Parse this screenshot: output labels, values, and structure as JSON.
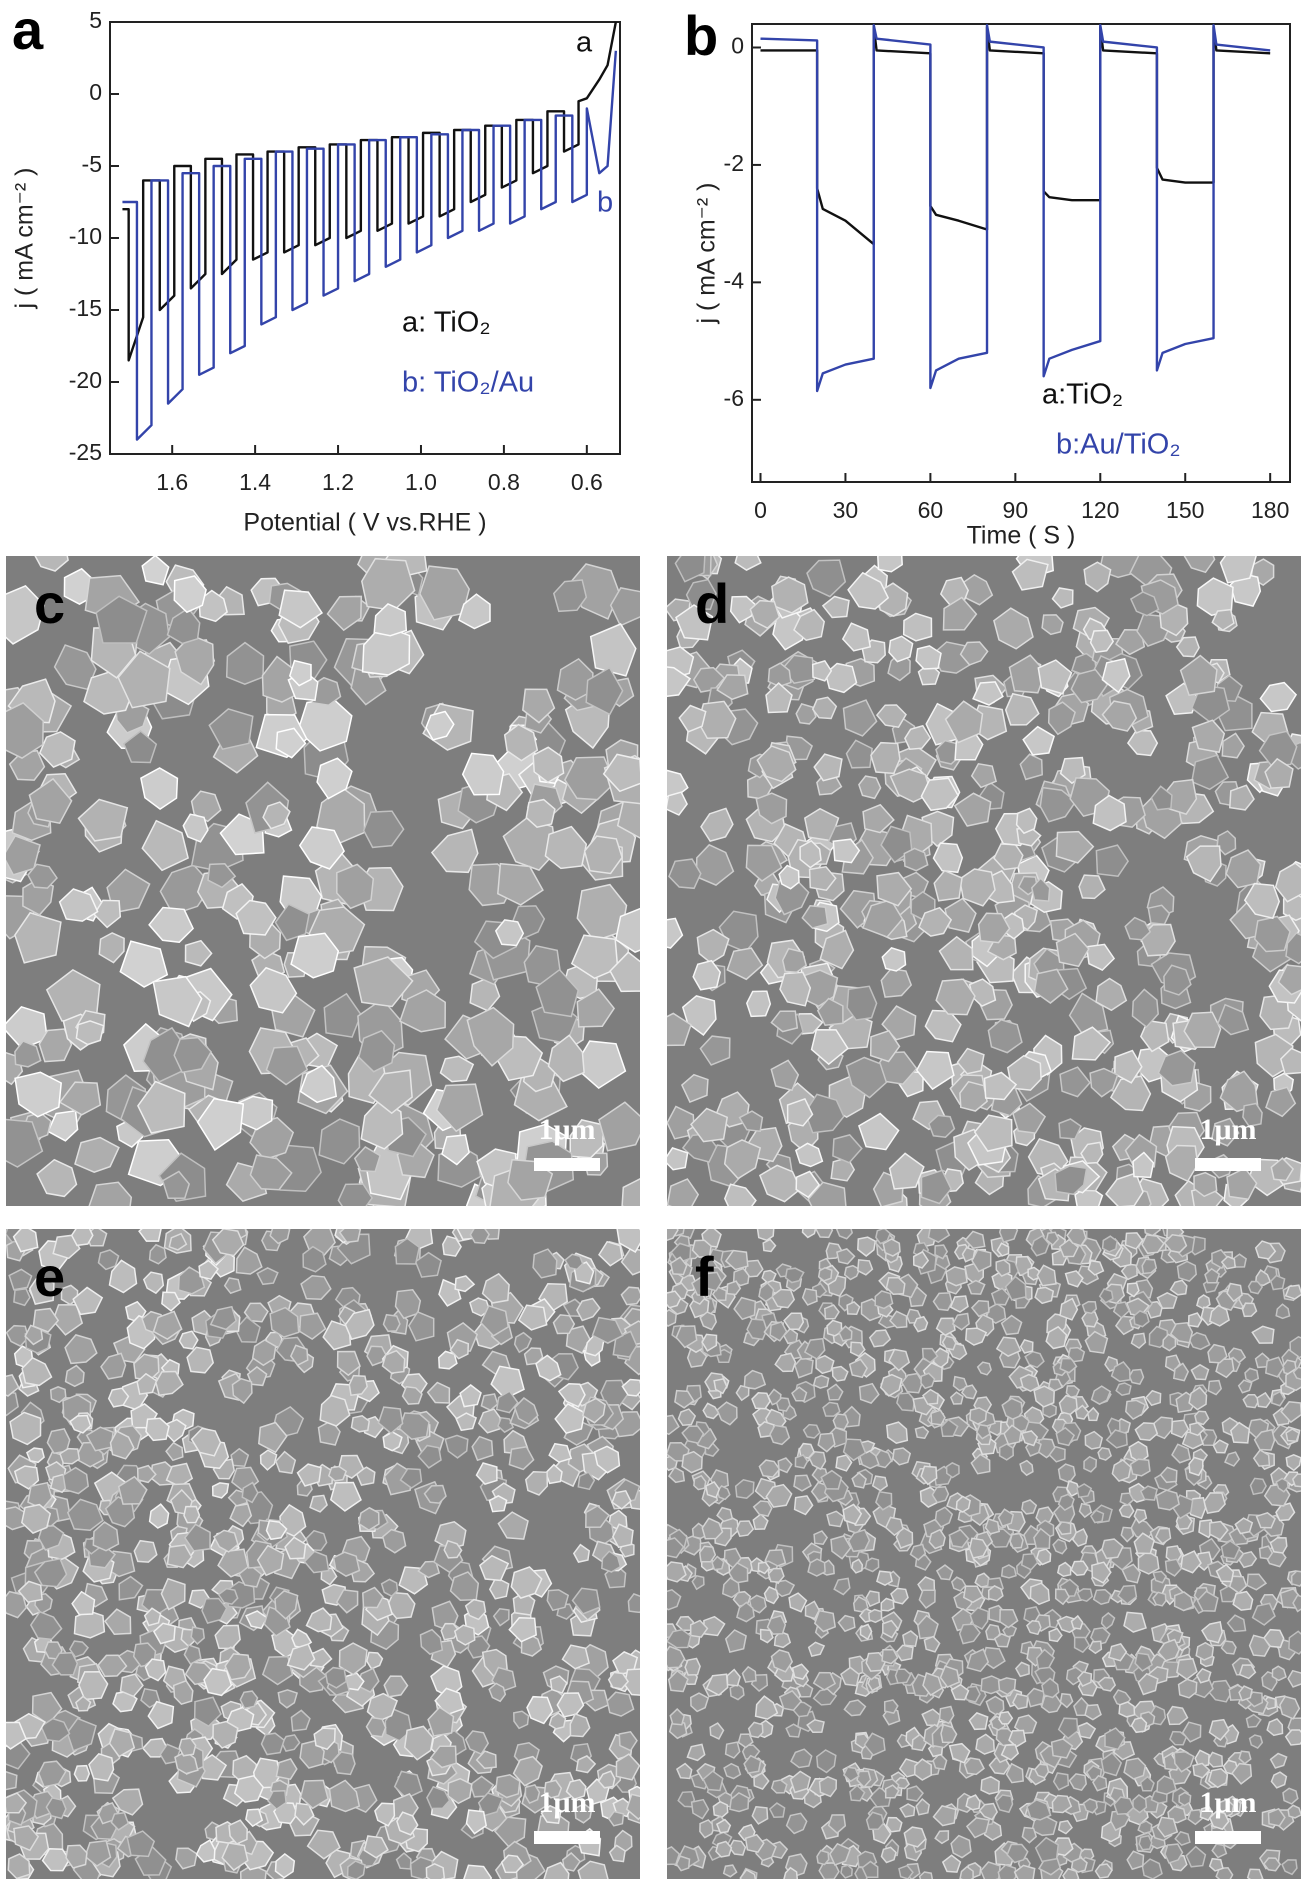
{
  "chart_data": [
    {
      "type": "line",
      "panel_label": "a",
      "x_label": "Potential ( V vs.RHE )",
      "y_label": "j ( mA cm⁻² )",
      "xlim": [
        1.75,
        0.52
      ],
      "ylim": [
        -25,
        5
      ],
      "xticks": [
        1.6,
        1.4,
        1.2,
        {
          "value": 1,
          "label": "1.0"
        },
        0.8,
        0.6
      ],
      "yticks": [
        -25,
        -20,
        -15,
        -10,
        -5,
        0,
        5
      ],
      "annotations": [
        "a",
        "b"
      ],
      "series": [
        {
          "name": "a: TiO₂",
          "color": "#111111",
          "x": [
            1.72,
            1.705,
            1.705,
            1.67,
            1.67,
            1.63,
            1.63,
            1.595,
            1.595,
            1.555,
            1.555,
            1.52,
            1.52,
            1.48,
            1.48,
            1.445,
            1.445,
            1.405,
            1.405,
            1.37,
            1.37,
            1.33,
            1.33,
            1.295,
            1.295,
            1.255,
            1.255,
            1.22,
            1.22,
            1.18,
            1.18,
            1.145,
            1.145,
            1.105,
            1.105,
            1.07,
            1.07,
            1.03,
            1.03,
            0.995,
            0.995,
            0.955,
            0.955,
            0.92,
            0.92,
            0.88,
            0.88,
            0.845,
            0.845,
            0.805,
            0.805,
            0.77,
            0.77,
            0.73,
            0.73,
            0.695,
            0.695,
            0.655,
            0.655,
            0.62,
            0.62,
            0.6,
            0.57,
            0.55,
            0.53
          ],
          "values": [
            -8,
            -8,
            -18.5,
            -15.5,
            -6,
            -6,
            -15,
            -14,
            -5,
            -5,
            -13.5,
            -12.5,
            -4.5,
            -4.5,
            -12.5,
            -11.5,
            -4.2,
            -4.2,
            -11.5,
            -11,
            -4,
            -4,
            -11,
            -10.5,
            -3.7,
            -3.7,
            -10.5,
            -10,
            -3.5,
            -3.5,
            -10,
            -9.5,
            -3.2,
            -3.2,
            -9.5,
            -9,
            -3,
            -3,
            -9,
            -8.5,
            -2.7,
            -2.7,
            -8.5,
            -8,
            -2.5,
            -2.5,
            -7.5,
            -7,
            -2.2,
            -2.2,
            -6.5,
            -6,
            -1.8,
            -1.8,
            -5.5,
            -5,
            -1.2,
            -1.2,
            -4,
            -3.5,
            -0.5,
            -0.3,
            1,
            2,
            5
          ]
        },
        {
          "name": "b: TiO₂/Au",
          "color": "#3344aa",
          "x": [
            1.72,
            1.685,
            1.685,
            1.65,
            1.65,
            1.61,
            1.61,
            1.575,
            1.575,
            1.535,
            1.535,
            1.5,
            1.5,
            1.46,
            1.46,
            1.425,
            1.425,
            1.385,
            1.385,
            1.35,
            1.35,
            1.31,
            1.31,
            1.275,
            1.275,
            1.235,
            1.235,
            1.2,
            1.2,
            1.16,
            1.16,
            1.125,
            1.125,
            1.085,
            1.085,
            1.05,
            1.05,
            1.01,
            1.01,
            0.975,
            0.975,
            0.935,
            0.935,
            0.9,
            0.9,
            0.86,
            0.86,
            0.825,
            0.825,
            0.785,
            0.785,
            0.75,
            0.75,
            0.71,
            0.71,
            0.675,
            0.675,
            0.635,
            0.635,
            0.6,
            0.6,
            0.57,
            0.55,
            0.53
          ],
          "values": [
            -7.5,
            -7.5,
            -24,
            -23,
            -6,
            -6,
            -21.5,
            -20.5,
            -5.5,
            -5.5,
            -19.5,
            -19,
            -5,
            -5,
            -18,
            -17.5,
            -4.5,
            -4.5,
            -16,
            -15.5,
            -4,
            -4,
            -15,
            -14.5,
            -3.8,
            -3.8,
            -14,
            -13.5,
            -3.5,
            -3.5,
            -13,
            -12.5,
            -3.2,
            -3.2,
            -12,
            -11.5,
            -3,
            -3,
            -11,
            -10.5,
            -2.8,
            -2.8,
            -10,
            -9.5,
            -2.5,
            -2.5,
            -9.5,
            -9,
            -2.2,
            -2.2,
            -9,
            -8.5,
            -1.8,
            -1.8,
            -8,
            -7.5,
            -1.5,
            -1.5,
            -7.5,
            -7,
            -1,
            -5.5,
            -5,
            3
          ]
        }
      ]
    },
    {
      "type": "line",
      "panel_label": "b",
      "x_label": "Time ( S )",
      "y_label": "j ( mA cm⁻² )",
      "xlim": [
        -3,
        187
      ],
      "ylim": [
        -7.4,
        0.4
      ],
      "xticks": [
        0,
        30,
        60,
        90,
        120,
        150,
        180
      ],
      "yticks": [
        -6,
        -4,
        -2,
        0
      ],
      "series": [
        {
          "name": "a:TiO₂",
          "color": "#111111",
          "x": [
            0,
            20,
            20,
            22,
            30,
            40,
            40,
            41,
            60,
            60,
            62,
            70,
            80,
            80,
            81,
            100,
            100,
            102,
            110,
            120,
            120,
            121,
            140,
            140,
            142,
            150,
            160,
            160,
            161,
            180
          ],
          "values": [
            -0.05,
            -0.05,
            -2.4,
            -2.75,
            -2.95,
            -3.35,
            0.35,
            -0.05,
            -0.1,
            -2.7,
            -2.85,
            -2.95,
            -3.1,
            0.35,
            -0.05,
            -0.1,
            -2.45,
            -2.55,
            -2.6,
            -2.6,
            0.35,
            -0.05,
            -0.1,
            -2.05,
            -2.25,
            -2.3,
            -2.3,
            0.35,
            -0.05,
            -0.1
          ]
        },
        {
          "name": "b:Au/TiO₂",
          "color": "#3344aa",
          "x": [
            0,
            20,
            20,
            22,
            30,
            40,
            40,
            41,
            60,
            60,
            62,
            70,
            80,
            80,
            81,
            100,
            100,
            102,
            110,
            120,
            120,
            121,
            140,
            140,
            142,
            150,
            160,
            160,
            161,
            180
          ],
          "values": [
            0.15,
            0.12,
            -5.85,
            -5.55,
            -5.4,
            -5.3,
            0.38,
            0.15,
            0.05,
            -5.8,
            -5.5,
            -5.3,
            -5.2,
            0.38,
            0.1,
            0,
            -5.6,
            -5.3,
            -5.15,
            -5,
            0.38,
            0.1,
            0,
            -5.5,
            -5.2,
            -5.05,
            -4.95,
            0.38,
            0.05,
            -0.05
          ]
        }
      ]
    }
  ],
  "images": [
    {
      "label": "c",
      "scale_bar": "1μm"
    },
    {
      "label": "d",
      "scale_bar": "1μm"
    },
    {
      "label": "e",
      "scale_bar": "1μm"
    },
    {
      "label": "f",
      "scale_bar": "1μm"
    }
  ]
}
